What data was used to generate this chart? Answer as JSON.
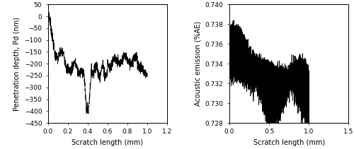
{
  "left": {
    "xlabel": "Scratch length (mm)",
    "ylabel": "Penetration depth, Pd (nm)",
    "xlim": [
      0,
      1.2
    ],
    "ylim": [
      -450,
      50
    ],
    "yticks": [
      50,
      0,
      -50,
      -100,
      -150,
      -200,
      -250,
      -300,
      -350,
      -400,
      -450
    ],
    "xticks": [
      0,
      0.2,
      0.4,
      0.6,
      0.8,
      1.0,
      1.2
    ]
  },
  "right": {
    "xlabel": "Scratch length (mm)",
    "ylabel": "Acoustic emission (%AE)",
    "xlim": [
      0,
      1.5
    ],
    "ylim": [
      0.728,
      0.74
    ],
    "yticks": [
      0.728,
      0.73,
      0.732,
      0.734,
      0.736,
      0.738,
      0.74
    ],
    "xticks": [
      0,
      0.5,
      1.0,
      1.5
    ]
  },
  "line_color": "#000000",
  "bg_color": "#ffffff",
  "fontsize": 7,
  "tick_fontsize": 6.5
}
